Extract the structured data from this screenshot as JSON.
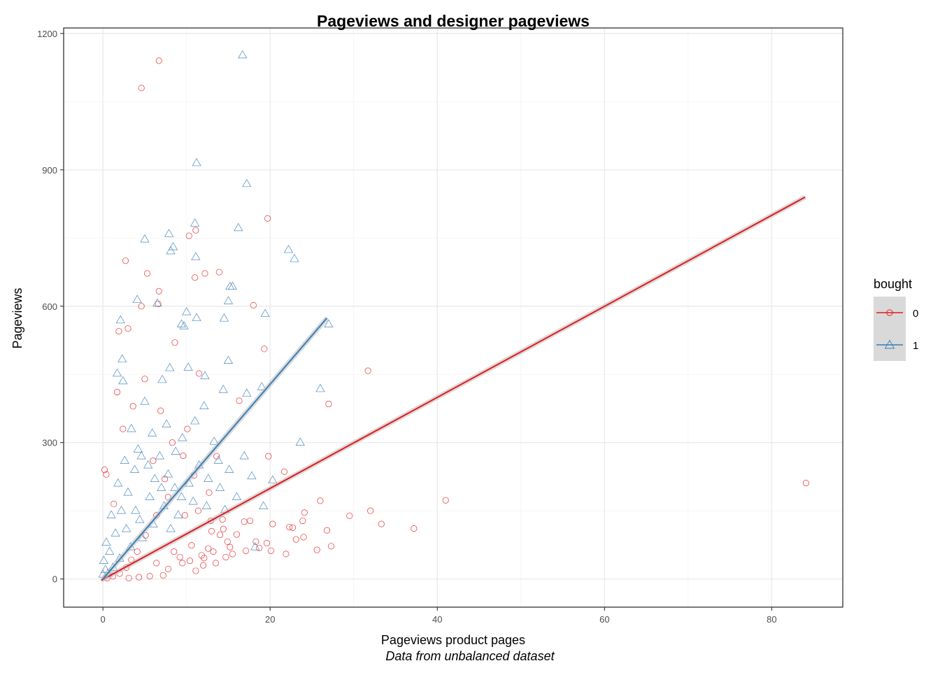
{
  "chart_data": {
    "type": "scatter",
    "title": "Pageviews and designer pageviews",
    "xlabel": "Pageviews product pages",
    "ylabel": "Pageviews",
    "caption": "Data from unbalanced dataset",
    "xlim": [
      -4.7,
      88.5
    ],
    "ylim": [
      -62,
      1212
    ],
    "x_ticks": [
      0,
      20,
      40,
      60,
      80
    ],
    "x_tick_labels": [
      "0",
      "20",
      "40",
      "60",
      "80"
    ],
    "y_ticks": [
      0,
      300,
      600,
      900,
      1200
    ],
    "y_tick_labels": [
      "0",
      "300",
      "600",
      "900",
      "1200"
    ],
    "grid": true,
    "legend": {
      "title": "bought",
      "position": "right",
      "entries": [
        {
          "label": "0",
          "color": "#e41a1c",
          "shape": "circle"
        },
        {
          "label": "1",
          "color": "#377eb8",
          "shape": "triangle"
        }
      ]
    },
    "series": [
      {
        "name": "0",
        "color": "#e41a1c",
        "shape": "circle",
        "fit": {
          "x": [
            -0.2,
            84
          ],
          "y": [
            -3,
            840
          ]
        },
        "points": [
          [
            6.7,
            1140
          ],
          [
            4.6,
            1080
          ],
          [
            19.7,
            793
          ],
          [
            11.1,
            767
          ],
          [
            10.3,
            755
          ],
          [
            5.3,
            672
          ],
          [
            12.2,
            672
          ],
          [
            13.9,
            675
          ],
          [
            2.7,
            700
          ],
          [
            11.0,
            663
          ],
          [
            6.7,
            633
          ],
          [
            6.6,
            605
          ],
          [
            18.0,
            602
          ],
          [
            19.3,
            506
          ],
          [
            11.5,
            452
          ],
          [
            31.7,
            458
          ],
          [
            27.0,
            385
          ],
          [
            16.3,
            392
          ],
          [
            21.7,
            236
          ],
          [
            19.8,
            270
          ],
          [
            41.0,
            173
          ],
          [
            37.2,
            111
          ],
          [
            33.3,
            121
          ],
          [
            32.0,
            150
          ],
          [
            29.5,
            139
          ],
          [
            26.8,
            107
          ],
          [
            26.0,
            172
          ],
          [
            24.1,
            146
          ],
          [
            23.9,
            128
          ],
          [
            22.7,
            113
          ],
          [
            22.3,
            114
          ],
          [
            24.0,
            92
          ],
          [
            25.6,
            64
          ],
          [
            21.9,
            55
          ],
          [
            20.1,
            62
          ],
          [
            19.6,
            79
          ],
          [
            17.1,
            62
          ],
          [
            84.1,
            211
          ],
          [
            18.3,
            82
          ],
          [
            14.9,
            82
          ],
          [
            16.9,
            126
          ],
          [
            15.5,
            55
          ],
          [
            14.0,
            97
          ],
          [
            14.3,
            131
          ],
          [
            13.0,
            105
          ],
          [
            12.6,
            67
          ],
          [
            12.1,
            46
          ],
          [
            10.6,
            74
          ],
          [
            11.1,
            18
          ],
          [
            9.5,
            35
          ],
          [
            7.8,
            22
          ],
          [
            6.4,
            35
          ],
          [
            13.5,
            35
          ],
          [
            12.0,
            30
          ],
          [
            3.0,
            551
          ],
          [
            4.6,
            600
          ],
          [
            5.0,
            440
          ],
          [
            1.7,
            411
          ],
          [
            1.9,
            545
          ],
          [
            13.6,
            270
          ],
          [
            8.6,
            520
          ],
          [
            6.9,
            370
          ],
          [
            10.1,
            330
          ],
          [
            8.3,
            300
          ],
          [
            9.6,
            271
          ],
          [
            10.9,
            228
          ],
          [
            12.7,
            190
          ],
          [
            14.4,
            110
          ],
          [
            15.2,
            70
          ],
          [
            7.8,
            180
          ],
          [
            6.4,
            140
          ],
          [
            5.1,
            96
          ],
          [
            4.1,
            60
          ],
          [
            3.4,
            42
          ],
          [
            2.8,
            25
          ],
          [
            2.0,
            12
          ],
          [
            1.2,
            6
          ],
          [
            0.5,
            2
          ],
          [
            8.5,
            60
          ],
          [
            9.2,
            48
          ],
          [
            10.4,
            40
          ],
          [
            11.8,
            52
          ],
          [
            13.2,
            60
          ],
          [
            14.7,
            48
          ],
          [
            7.2,
            8
          ],
          [
            5.6,
            6
          ],
          [
            4.3,
            4
          ],
          [
            3.1,
            2
          ],
          [
            0.4,
            230
          ],
          [
            0.2,
            240
          ],
          [
            1.3,
            165
          ],
          [
            2.4,
            330
          ],
          [
            3.6,
            380
          ],
          [
            6.0,
            260
          ],
          [
            7.4,
            220
          ],
          [
            9.8,
            140
          ],
          [
            11.4,
            150
          ],
          [
            12.9,
            128
          ],
          [
            16.0,
            98
          ],
          [
            17.6,
            128
          ],
          [
            20.3,
            121
          ],
          [
            23.1,
            87
          ],
          [
            27.3,
            72
          ],
          [
            18.7,
            68
          ]
        ]
      },
      {
        "name": "1",
        "color": "#377eb8",
        "shape": "triangle",
        "fit": {
          "x": [
            0,
            26.8
          ],
          "y": [
            0,
            574
          ]
        },
        "points": [
          [
            16.7,
            1152
          ],
          [
            11.2,
            915
          ],
          [
            17.2,
            869
          ],
          [
            11.0,
            782
          ],
          [
            16.2,
            772
          ],
          [
            7.9,
            759
          ],
          [
            5.0,
            747
          ],
          [
            8.4,
            730
          ],
          [
            8.1,
            721
          ],
          [
            22.2,
            724
          ],
          [
            22.9,
            704
          ],
          [
            11.1,
            708
          ],
          [
            15.2,
            643
          ],
          [
            15.5,
            643
          ],
          [
            4.1,
            614
          ],
          [
            6.5,
            606
          ],
          [
            15.0,
            611
          ],
          [
            10.0,
            587
          ],
          [
            19.4,
            583
          ],
          [
            11.2,
            574
          ],
          [
            14.5,
            573
          ],
          [
            2.1,
            569
          ],
          [
            9.4,
            560
          ],
          [
            9.7,
            556
          ],
          [
            26.0,
            418
          ],
          [
            27.0,
            560
          ],
          [
            23.6,
            300
          ],
          [
            10.2,
            465
          ],
          [
            2.3,
            483
          ],
          [
            8.0,
            464
          ],
          [
            1.7,
            452
          ],
          [
            2.4,
            435
          ],
          [
            15.0,
            480
          ],
          [
            12.2,
            446
          ],
          [
            7.1,
            438
          ],
          [
            14.4,
            416
          ],
          [
            17.2,
            408
          ],
          [
            19.0,
            422
          ],
          [
            20.3,
            217
          ],
          [
            17.8,
            226
          ],
          [
            16.0,
            180
          ],
          [
            14.6,
            152
          ],
          [
            19.2,
            160
          ],
          [
            18.2,
            70
          ],
          [
            13.3,
            302
          ],
          [
            12.1,
            380
          ],
          [
            11.0,
            347
          ],
          [
            9.5,
            310
          ],
          [
            8.7,
            280
          ],
          [
            7.6,
            340
          ],
          [
            6.8,
            270
          ],
          [
            5.9,
            320
          ],
          [
            5.0,
            390
          ],
          [
            4.2,
            285
          ],
          [
            3.4,
            330
          ],
          [
            2.6,
            260
          ],
          [
            1.8,
            210
          ],
          [
            1.0,
            140
          ],
          [
            0.4,
            80
          ],
          [
            0.1,
            40
          ],
          [
            0.0,
            10
          ],
          [
            0.3,
            20
          ],
          [
            0.8,
            60
          ],
          [
            1.5,
            100
          ],
          [
            2.2,
            150
          ],
          [
            3.0,
            190
          ],
          [
            3.8,
            240
          ],
          [
            4.6,
            270
          ],
          [
            5.4,
            250
          ],
          [
            6.2,
            220
          ],
          [
            7.0,
            200
          ],
          [
            7.8,
            230
          ],
          [
            8.6,
            200
          ],
          [
            9.4,
            180
          ],
          [
            10.3,
            210
          ],
          [
            11.5,
            250
          ],
          [
            12.6,
            220
          ],
          [
            13.8,
            260
          ],
          [
            15.1,
            240
          ],
          [
            16.9,
            270
          ],
          [
            6.0,
            120
          ],
          [
            4.7,
            90
          ],
          [
            3.3,
            70
          ],
          [
            2.0,
            45
          ],
          [
            9.0,
            140
          ],
          [
            10.8,
            170
          ],
          [
            12.4,
            160
          ],
          [
            14.0,
            200
          ],
          [
            1.2,
            25
          ],
          [
            0.6,
            12
          ],
          [
            3.9,
            150
          ],
          [
            5.6,
            180
          ],
          [
            7.3,
            160
          ],
          [
            8.1,
            110
          ],
          [
            2.8,
            110
          ],
          [
            4.4,
            130
          ]
        ]
      }
    ]
  }
}
